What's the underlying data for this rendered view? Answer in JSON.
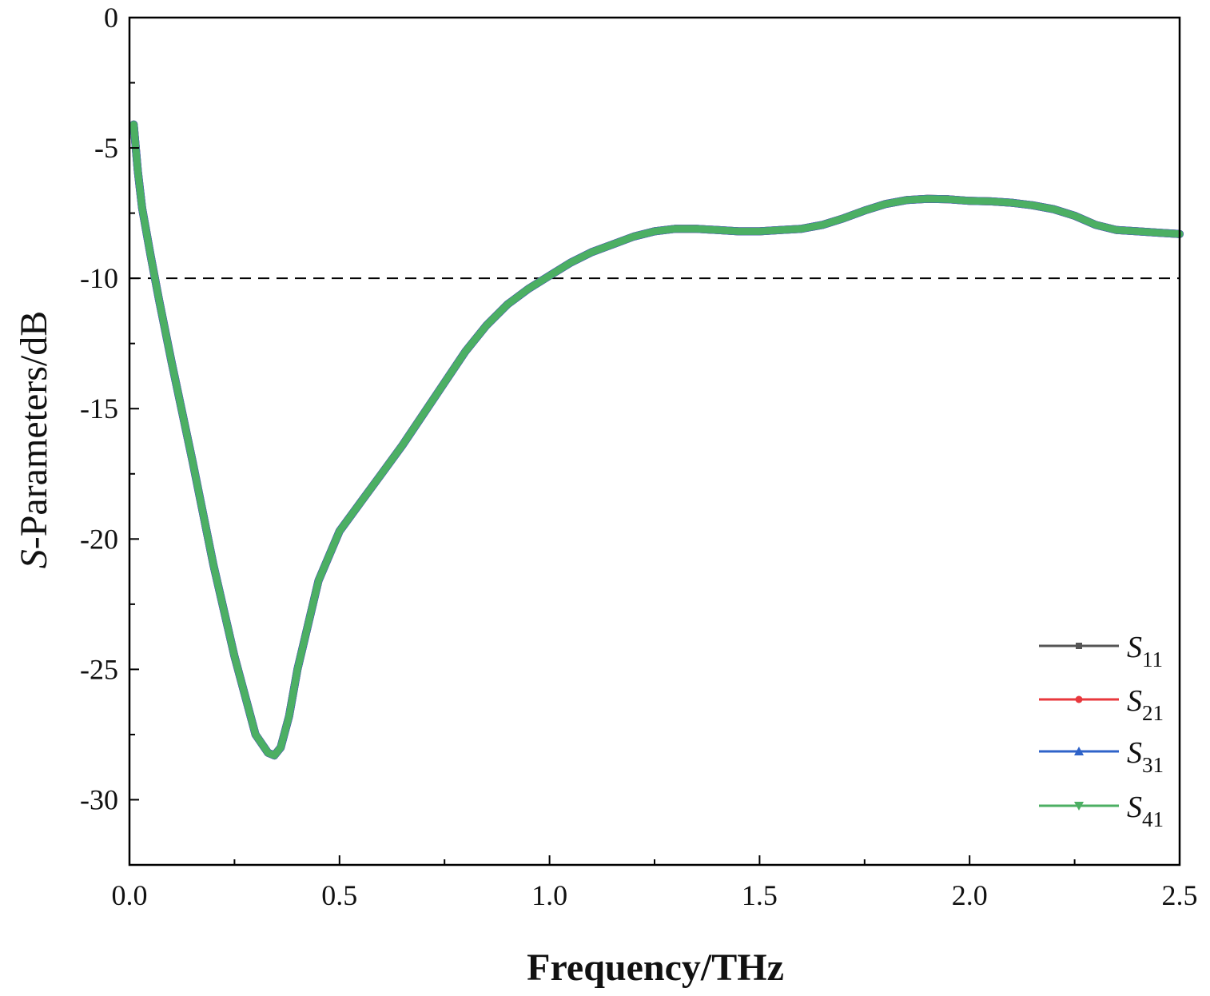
{
  "chart_data": {
    "type": "line",
    "xlabel": "Frequency/THz",
    "ylabel": "S-Parameters/dB",
    "ylabel_italic_part": "S",
    "ylabel_rest": "-Parameters/dB",
    "xlim": [
      0.0,
      2.5
    ],
    "ylim": [
      -32.5,
      0
    ],
    "x_ticks": [
      0.0,
      0.5,
      1.0,
      1.5,
      2.0,
      2.5
    ],
    "x_tick_labels": [
      "0.0",
      "0.5",
      "1.0",
      "1.5",
      "2.0",
      "2.5"
    ],
    "y_ticks": [
      0,
      -5,
      -10,
      -15,
      -20,
      -25,
      -30
    ],
    "y_tick_labels": [
      "0",
      "-5",
      "-10",
      "-15",
      "-20",
      "-25",
      "-30"
    ],
    "reference_line": {
      "y": -10,
      "style": "dashed",
      "color": "#000000"
    },
    "grid": false,
    "legend_position": "bottom-right",
    "x": [
      0.01,
      0.02,
      0.03,
      0.05,
      0.07,
      0.1,
      0.15,
      0.2,
      0.25,
      0.3,
      0.33,
      0.345,
      0.36,
      0.38,
      0.4,
      0.45,
      0.5,
      0.55,
      0.6,
      0.65,
      0.7,
      0.75,
      0.8,
      0.85,
      0.9,
      0.95,
      1.0,
      1.05,
      1.1,
      1.15,
      1.2,
      1.25,
      1.3,
      1.35,
      1.4,
      1.45,
      1.5,
      1.55,
      1.6,
      1.65,
      1.7,
      1.75,
      1.8,
      1.85,
      1.9,
      1.95,
      2.0,
      2.05,
      2.1,
      2.15,
      2.2,
      2.25,
      2.3,
      2.35,
      2.4,
      2.45,
      2.5
    ],
    "series": [
      {
        "name": "S11",
        "sub": "11",
        "color": "#555555",
        "marker": "square",
        "values": [
          -4.1,
          -5.9,
          -7.3,
          -9.1,
          -10.8,
          -13.2,
          -17.0,
          -21.0,
          -24.5,
          -27.5,
          -28.2,
          -28.3,
          -28.0,
          -26.8,
          -25.0,
          -21.6,
          -19.7,
          -18.6,
          -17.5,
          -16.4,
          -15.2,
          -14.0,
          -12.8,
          -11.8,
          -11.0,
          -10.4,
          -9.9,
          -9.4,
          -9.0,
          -8.7,
          -8.4,
          -8.2,
          -8.1,
          -8.1,
          -8.15,
          -8.2,
          -8.2,
          -8.15,
          -8.1,
          -7.95,
          -7.7,
          -7.4,
          -7.15,
          -7.0,
          -6.95,
          -6.97,
          -7.03,
          -7.05,
          -7.1,
          -7.2,
          -7.35,
          -7.6,
          -7.95,
          -8.15,
          -8.2,
          -8.25,
          -8.3
        ]
      },
      {
        "name": "S21",
        "sub": "21",
        "color": "#e8383d",
        "marker": "circle",
        "values": [
          -4.1,
          -5.9,
          -7.3,
          -9.1,
          -10.8,
          -13.2,
          -17.0,
          -21.0,
          -24.5,
          -27.5,
          -28.2,
          -28.3,
          -28.0,
          -26.8,
          -25.0,
          -21.6,
          -19.7,
          -18.6,
          -17.5,
          -16.4,
          -15.2,
          -14.0,
          -12.8,
          -11.8,
          -11.0,
          -10.4,
          -9.9,
          -9.4,
          -9.0,
          -8.7,
          -8.4,
          -8.2,
          -8.1,
          -8.1,
          -8.15,
          -8.2,
          -8.2,
          -8.15,
          -8.1,
          -7.95,
          -7.7,
          -7.4,
          -7.15,
          -7.0,
          -6.95,
          -6.97,
          -7.03,
          -7.05,
          -7.1,
          -7.2,
          -7.35,
          -7.6,
          -7.95,
          -8.15,
          -8.2,
          -8.25,
          -8.3
        ]
      },
      {
        "name": "S31",
        "sub": "31",
        "color": "#2f63c9",
        "marker": "triangle-up",
        "values": [
          -4.1,
          -5.9,
          -7.3,
          -9.1,
          -10.8,
          -13.2,
          -17.0,
          -21.0,
          -24.5,
          -27.5,
          -28.2,
          -28.3,
          -28.0,
          -26.8,
          -25.0,
          -21.6,
          -19.7,
          -18.6,
          -17.5,
          -16.4,
          -15.2,
          -14.0,
          -12.8,
          -11.8,
          -11.0,
          -10.4,
          -9.9,
          -9.4,
          -9.0,
          -8.7,
          -8.4,
          -8.2,
          -8.1,
          -8.1,
          -8.15,
          -8.2,
          -8.2,
          -8.15,
          -8.1,
          -7.95,
          -7.7,
          -7.4,
          -7.15,
          -7.0,
          -6.95,
          -6.97,
          -7.03,
          -7.05,
          -7.1,
          -7.2,
          -7.35,
          -7.6,
          -7.95,
          -8.15,
          -8.2,
          -8.25,
          -8.3
        ]
      },
      {
        "name": "S41",
        "sub": "41",
        "color": "#4caf63",
        "marker": "triangle-down",
        "values": [
          -4.1,
          -5.9,
          -7.3,
          -9.1,
          -10.8,
          -13.2,
          -17.0,
          -21.0,
          -24.5,
          -27.5,
          -28.2,
          -28.3,
          -28.0,
          -26.8,
          -25.0,
          -21.6,
          -19.7,
          -18.6,
          -17.5,
          -16.4,
          -15.2,
          -14.0,
          -12.8,
          -11.8,
          -11.0,
          -10.4,
          -9.9,
          -9.4,
          -9.0,
          -8.7,
          -8.4,
          -8.2,
          -8.1,
          -8.1,
          -8.15,
          -8.2,
          -8.2,
          -8.15,
          -8.1,
          -7.95,
          -7.7,
          -7.4,
          -7.15,
          -7.0,
          -6.95,
          -6.97,
          -7.03,
          -7.05,
          -7.1,
          -7.2,
          -7.35,
          -7.6,
          -7.95,
          -8.15,
          -8.2,
          -8.25,
          -8.3
        ]
      }
    ]
  }
}
